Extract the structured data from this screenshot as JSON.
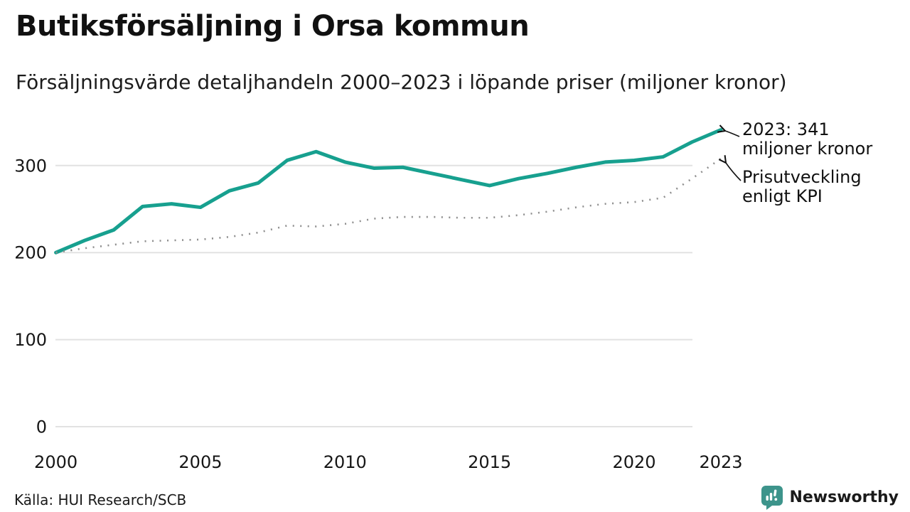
{
  "header": {
    "title": "Butiksförsäljning i Orsa kommun",
    "subtitle": "Försäljningsvärde detaljhandeln 2000–2023 i löpande priser (miljoner kronor)"
  },
  "chart_data": {
    "type": "line",
    "title": "Butiksförsäljning i Orsa kommun",
    "subtitle": "Försäljningsvärde detaljhandeln 2000–2023 i löpande priser (miljoner kronor)",
    "x": [
      2000,
      2001,
      2002,
      2003,
      2004,
      2005,
      2006,
      2007,
      2008,
      2009,
      2010,
      2011,
      2012,
      2013,
      2014,
      2015,
      2016,
      2017,
      2018,
      2019,
      2020,
      2021,
      2022,
      2023
    ],
    "series": [
      {
        "name": "Försäljningsvärde detaljhandeln i löpande priser",
        "style": "solid",
        "color": "#17a08f",
        "values": [
          200,
          214,
          226,
          253,
          256,
          252,
          271,
          280,
          306,
          316,
          304,
          297,
          298,
          291,
          284,
          277,
          285,
          291,
          298,
          304,
          306,
          310,
          327,
          341
        ]
      },
      {
        "name": "Prisutveckling enligt KPI",
        "style": "dotted",
        "color": "#8f8f8f",
        "values": [
          200,
          205,
          209,
          213,
          214,
          215,
          218,
          223,
          231,
          230,
          233,
          239,
          241,
          241,
          240,
          240,
          243,
          247,
          252,
          256,
          258,
          263,
          285,
          308
        ]
      }
    ],
    "ylim": [
      0,
      350
    ],
    "yticks": [
      "0",
      "100",
      "200",
      "300"
    ],
    "ytick_values": [
      0,
      100,
      200,
      300
    ],
    "xticks": [
      "2000",
      "2005",
      "2010",
      "2015",
      "2020",
      "2023"
    ],
    "xtick_values": [
      2000,
      2005,
      2010,
      2015,
      2020,
      2023
    ],
    "grid": "horizontal",
    "legend_position": "none",
    "annotations": [
      {
        "lines": [
          "2023: 341",
          "miljoner kronor"
        ],
        "points_to": "solid series end 2023 = 341"
      },
      {
        "lines": [
          "Prisutveckling",
          "enligt KPI"
        ],
        "points_to": "dotted series end 2023"
      }
    ]
  },
  "footer": {
    "source": "Källa: HUI Research/SCB",
    "brand": "Newsworthy",
    "brand_color": "#3d948b"
  },
  "colors": {
    "sales_line": "#17a08f",
    "kpi_line": "#8f8f8f",
    "gridline": "#e2e2e2",
    "text": "#1a1a1a"
  }
}
